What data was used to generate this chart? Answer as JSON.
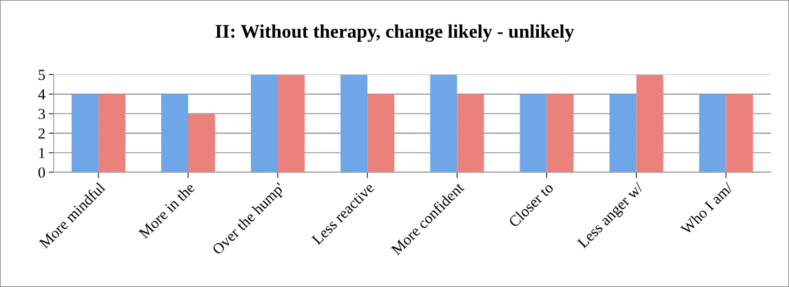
{
  "chart_data": {
    "type": "bar",
    "title": "II: Without therapy, change likely - unlikely",
    "categories": [
      "More mindful",
      "More in the",
      "Over the hump'",
      "Less reactive",
      "More confident",
      "Closer to",
      "Less anger w/",
      "Who I am/"
    ],
    "series": [
      {
        "color": "#6fa6e8",
        "values": [
          4,
          4,
          5,
          5,
          5,
          4,
          4,
          4
        ]
      },
      {
        "color": "#ea817a",
        "values": [
          4,
          3,
          5,
          4,
          4,
          4,
          5,
          4
        ]
      }
    ],
    "ylim": [
      0,
      5
    ],
    "yticks": [
      0,
      1,
      2,
      3,
      4,
      5
    ],
    "grid": "y",
    "legend": false
  }
}
